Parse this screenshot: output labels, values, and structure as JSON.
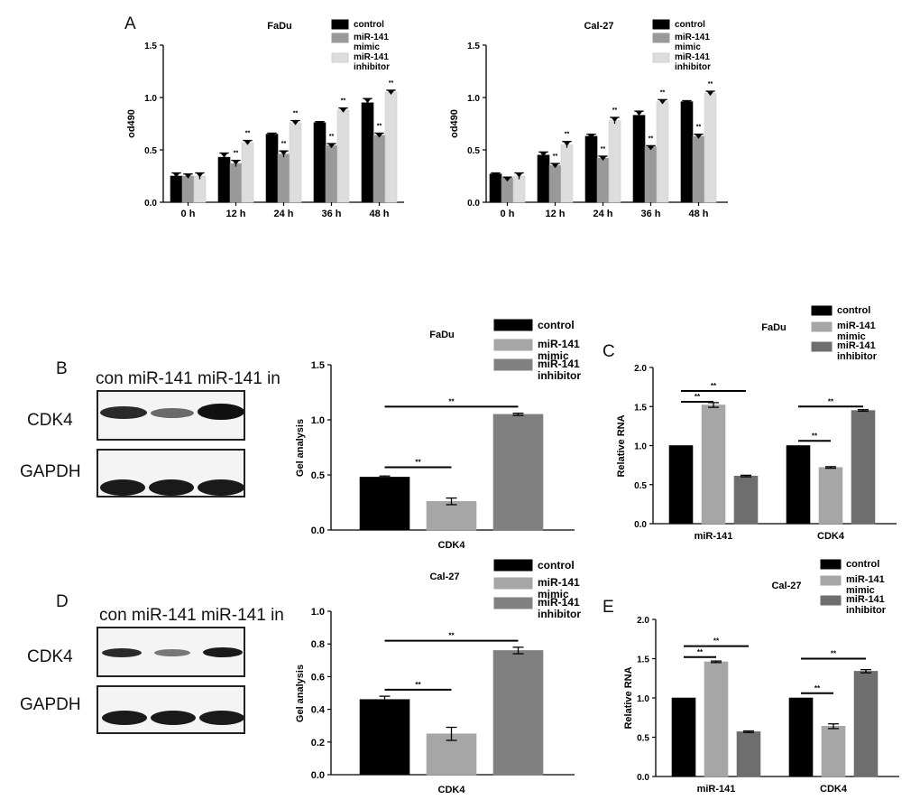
{
  "panel_letters": {
    "a": "A",
    "b": "B",
    "c": "C",
    "d": "D",
    "e": "E"
  },
  "blots": [
    {
      "lanes": "con miR-141 miR-141 in",
      "labels": [
        "CDK4",
        "GAPDH"
      ]
    },
    {
      "lanes": "con miR-141 miR-141 in",
      "labels": [
        "CDK4",
        "GAPDH"
      ]
    }
  ],
  "chart_data": [
    {
      "id": "A1",
      "type": "bar",
      "title": "FaDu",
      "ylabel": "od490",
      "xlabel": "",
      "categories": [
        "0 h",
        "12 h",
        "24 h",
        "36 h",
        "48 h"
      ],
      "ylim": [
        0,
        1.5
      ],
      "yticks": [
        0.0,
        0.5,
        1.0,
        1.5
      ],
      "ytick_labels": [
        "0.0",
        "0.5",
        "1.0",
        "1.5"
      ],
      "legend": [
        "control",
        "miR-141 mimic",
        "miR-141 inhibitor"
      ],
      "series": [
        {
          "name": "control",
          "color": "#000000",
          "values": [
            0.25,
            0.43,
            0.65,
            0.76,
            0.95
          ],
          "errors": [
            0.03,
            0.04,
            0.01,
            0.01,
            0.04
          ]
        },
        {
          "name": "miR-141 mimic",
          "color": "#999999",
          "values": [
            0.25,
            0.37,
            0.46,
            0.54,
            0.64
          ],
          "errors": [
            0.02,
            0.03,
            0.03,
            0.02,
            0.02
          ]
        },
        {
          "name": "miR-141 inhibitor",
          "color": "#dddddd",
          "values": [
            0.25,
            0.57,
            0.76,
            0.88,
            1.05
          ],
          "errors": [
            0.03,
            0.02,
            0.02,
            0.02,
            0.02
          ]
        }
      ],
      "annotations": [
        {
          "text": "**",
          "category": 1,
          "series": 1
        },
        {
          "text": "**",
          "category": 1,
          "series": 2
        },
        {
          "text": "**",
          "category": 2,
          "series": 1
        },
        {
          "text": "**",
          "category": 2,
          "series": 2
        },
        {
          "text": "**",
          "category": 3,
          "series": 1
        },
        {
          "text": "**",
          "category": 3,
          "series": 2
        },
        {
          "text": "**",
          "category": 4,
          "series": 1
        },
        {
          "text": "**",
          "category": 4,
          "series": 2
        }
      ]
    },
    {
      "id": "A2",
      "type": "bar",
      "title": "Cal-27",
      "ylabel": "od490",
      "xlabel": "",
      "categories": [
        "0 h",
        "12 h",
        "24 h",
        "36 h",
        "48 h"
      ],
      "ylim": [
        0,
        1.5
      ],
      "yticks": [
        0.0,
        0.5,
        1.0,
        1.5
      ],
      "ytick_labels": [
        "0.0",
        "0.5",
        "1.0",
        "1.5"
      ],
      "legend": [
        "control",
        "miR-141 mimic",
        "miR-141 inhibitor"
      ],
      "series": [
        {
          "name": "control",
          "color": "#000000",
          "values": [
            0.27,
            0.45,
            0.63,
            0.83,
            0.96
          ],
          "errors": [
            0.01,
            0.03,
            0.02,
            0.04,
            0.01
          ]
        },
        {
          "name": "miR-141 mimic",
          "color": "#999999",
          "values": [
            0.23,
            0.35,
            0.42,
            0.53,
            0.63
          ],
          "errors": [
            0.01,
            0.02,
            0.02,
            0.01,
            0.02
          ]
        },
        {
          "name": "miR-141 inhibitor",
          "color": "#dddddd",
          "values": [
            0.25,
            0.55,
            0.78,
            0.96,
            1.04
          ],
          "errors": [
            0.03,
            0.03,
            0.03,
            0.02,
            0.02
          ]
        }
      ],
      "annotations": [
        {
          "text": "**",
          "category": 1,
          "series": 1
        },
        {
          "text": "**",
          "category": 1,
          "series": 2
        },
        {
          "text": "**",
          "category": 2,
          "series": 1
        },
        {
          "text": "**",
          "category": 2,
          "series": 2
        },
        {
          "text": "**",
          "category": 3,
          "series": 1
        },
        {
          "text": "**",
          "category": 3,
          "series": 2
        },
        {
          "text": "**",
          "category": 4,
          "series": 1
        },
        {
          "text": "**",
          "category": 4,
          "series": 2
        }
      ]
    },
    {
      "id": "B",
      "type": "bar",
      "title": "FaDu",
      "ylabel": "Gel analysis",
      "xlabel": "",
      "categories": [
        "CDK4"
      ],
      "ylim": [
        0,
        1.5
      ],
      "yticks": [
        0.0,
        0.5,
        1.0,
        1.5
      ],
      "ytick_labels": [
        "0.0",
        "0.5",
        "1.0",
        "1.5"
      ],
      "legend": [
        "control",
        "miR-141 mimic",
        "miR-141 inhibitor"
      ],
      "series": [
        {
          "name": "control",
          "color": "#000000",
          "values": [
            0.48
          ],
          "errors": [
            0.01
          ]
        },
        {
          "name": "miR-141 mimic",
          "color": "#a6a6a6",
          "values": [
            0.26
          ],
          "errors": [
            0.03
          ]
        },
        {
          "name": "miR-141 inhibitor",
          "color": "#808080",
          "values": [
            1.05
          ],
          "errors": [
            0.01
          ]
        }
      ],
      "brackets": [
        {
          "category": 0,
          "from": 0,
          "to": 1,
          "y": 0.57,
          "text": "**"
        },
        {
          "category": 0,
          "from": 0,
          "to": 2,
          "y": 1.12,
          "text": "**"
        }
      ]
    },
    {
      "id": "C",
      "type": "bar",
      "title": "FaDu",
      "ylabel": "Relative RNA",
      "xlabel": "",
      "categories": [
        "miR-141",
        "CDK4"
      ],
      "ylim": [
        0,
        2.0
      ],
      "yticks": [
        0.0,
        0.5,
        1.0,
        1.5,
        2.0
      ],
      "ytick_labels": [
        "0.0",
        "0.5",
        "1.0",
        "1.5",
        "2.0"
      ],
      "legend": [
        "control",
        "miR-141 mimic",
        "miR-141 inhibitor"
      ],
      "series": [
        {
          "name": "control",
          "color": "#000000",
          "values": [
            1.0,
            1.0
          ],
          "errors": [
            0,
            0
          ]
        },
        {
          "name": "miR-141 mimic",
          "color": "#a6a6a6",
          "values": [
            1.52,
            0.72
          ],
          "errors": [
            0.03,
            0.01
          ]
        },
        {
          "name": "miR-141 inhibitor",
          "color": "#6e6e6e",
          "values": [
            0.61,
            1.45
          ],
          "errors": [
            0.01,
            0.01
          ]
        }
      ],
      "brackets": [
        {
          "category": 0,
          "from": 0,
          "to": 1,
          "y": 1.56,
          "text": "**"
        },
        {
          "category": 0,
          "from": 0,
          "to": 2,
          "y": 1.7,
          "text": "**"
        },
        {
          "category": 1,
          "from": 0,
          "to": 1,
          "y": 1.06,
          "text": "**"
        },
        {
          "category": 1,
          "from": 0,
          "to": 2,
          "y": 1.5,
          "text": "**"
        }
      ]
    },
    {
      "id": "D",
      "type": "bar",
      "title": "Cal-27",
      "ylabel": "Gel analysis",
      "xlabel": "",
      "categories": [
        "CDK4"
      ],
      "ylim": [
        0,
        1.0
      ],
      "yticks": [
        0.0,
        0.2,
        0.4,
        0.6,
        0.8,
        1.0
      ],
      "ytick_labels": [
        "0.0",
        "0.2",
        "0.4",
        "0.6",
        "0.8",
        "1.0"
      ],
      "legend": [
        "control",
        "miR-141 mimic",
        "miR-141 inhibitor"
      ],
      "series": [
        {
          "name": "control",
          "color": "#000000",
          "values": [
            0.46
          ],
          "errors": [
            0.02
          ]
        },
        {
          "name": "miR-141 mimic",
          "color": "#a6a6a6",
          "values": [
            0.25
          ],
          "errors": [
            0.04
          ]
        },
        {
          "name": "miR-141 inhibitor",
          "color": "#808080",
          "values": [
            0.76
          ],
          "errors": [
            0.02
          ]
        }
      ],
      "brackets": [
        {
          "category": 0,
          "from": 0,
          "to": 1,
          "y": 0.52,
          "text": "**"
        },
        {
          "category": 0,
          "from": 0,
          "to": 2,
          "y": 0.82,
          "text": "**"
        }
      ]
    },
    {
      "id": "E",
      "type": "bar",
      "title": "Cal-27",
      "ylabel": "Relative RNA",
      "xlabel": "",
      "categories": [
        "miR-141",
        "CDK4"
      ],
      "ylim": [
        0,
        2.0
      ],
      "yticks": [
        0.0,
        0.5,
        1.0,
        1.5,
        2.0
      ],
      "ytick_labels": [
        "0.0",
        "0.5",
        "1.0",
        "1.5",
        "2.0"
      ],
      "legend": [
        "control",
        "miR-141 mimic",
        "miR-141 inhibitor"
      ],
      "series": [
        {
          "name": "control",
          "color": "#000000",
          "values": [
            1.0,
            1.0
          ],
          "errors": [
            0,
            0
          ]
        },
        {
          "name": "miR-141 mimic",
          "color": "#a6a6a6",
          "values": [
            1.46,
            0.64
          ],
          "errors": [
            0.01,
            0.03
          ]
        },
        {
          "name": "miR-141 inhibitor",
          "color": "#6e6e6e",
          "values": [
            0.57,
            1.34
          ],
          "errors": [
            0.01,
            0.02
          ]
        }
      ],
      "brackets": [
        {
          "category": 0,
          "from": 0,
          "to": 1,
          "y": 1.52,
          "text": "**"
        },
        {
          "category": 0,
          "from": 0,
          "to": 2,
          "y": 1.66,
          "text": "**"
        },
        {
          "category": 1,
          "from": 0,
          "to": 1,
          "y": 1.06,
          "text": "**"
        },
        {
          "category": 1,
          "from": 0,
          "to": 2,
          "y": 1.5,
          "text": "**"
        }
      ]
    }
  ]
}
